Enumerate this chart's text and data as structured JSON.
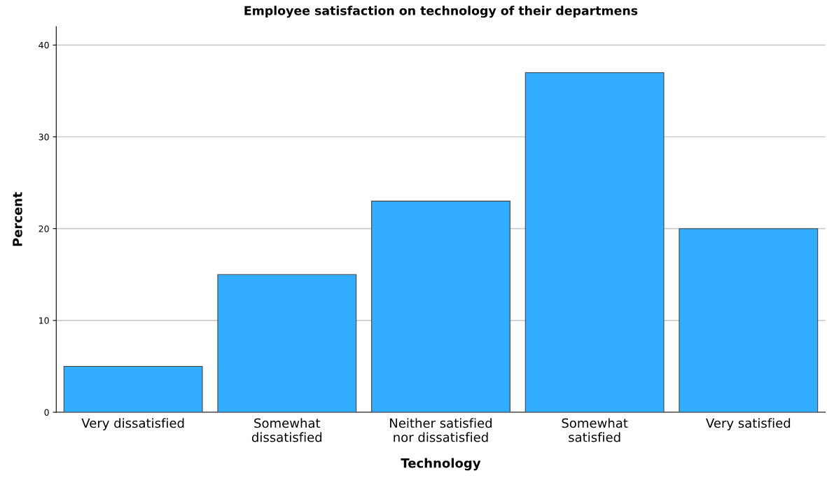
{
  "chart_data": {
    "type": "bar",
    "title": "Employee satisfaction on technology of their departmens",
    "xlabel": "Technology",
    "ylabel": "Percent",
    "categories": [
      "Very dissatisfied",
      "Somewhat\ndissatisfied",
      "Neither satisfied\nnor dissatisfied",
      "Somewhat\nsatisfied",
      "Very satisfied"
    ],
    "values": [
      5,
      15,
      23,
      37,
      20
    ],
    "color": "#33adff",
    "ylim": [
      0,
      42
    ],
    "yticks": [
      0,
      10,
      20,
      30,
      40
    ],
    "grid": "y",
    "legend": false
  }
}
